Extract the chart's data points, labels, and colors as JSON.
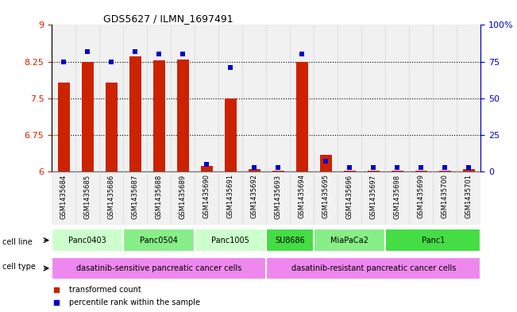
{
  "title": "GDS5627 / ILMN_1697491",
  "samples": [
    "GSM1435684",
    "GSM1435685",
    "GSM1435686",
    "GSM1435687",
    "GSM1435688",
    "GSM1435689",
    "GSM1435690",
    "GSM1435691",
    "GSM1435692",
    "GSM1435693",
    "GSM1435694",
    "GSM1435695",
    "GSM1435696",
    "GSM1435697",
    "GSM1435698",
    "GSM1435699",
    "GSM1435700",
    "GSM1435701"
  ],
  "transformed_count": [
    7.82,
    8.25,
    7.82,
    8.35,
    8.28,
    8.3,
    6.12,
    7.5,
    6.05,
    6.02,
    8.25,
    6.35,
    6.02,
    6.02,
    6.02,
    6.02,
    6.02,
    6.05
  ],
  "percentile_rank": [
    75,
    82,
    75,
    82,
    80,
    80,
    5,
    71,
    3,
    3,
    80,
    7,
    3,
    3,
    3,
    3,
    3,
    3
  ],
  "ylim_left": [
    6.0,
    9.0
  ],
  "ylim_right": [
    0,
    100
  ],
  "yticks_left": [
    6.0,
    6.75,
    7.5,
    8.25,
    9.0
  ],
  "yticks_left_labels": [
    "6",
    "6.75",
    "7.5",
    "8.25",
    "9"
  ],
  "yticks_right": [
    0,
    25,
    50,
    75,
    100
  ],
  "yticks_right_labels": [
    "0",
    "25",
    "50",
    "75",
    "100%"
  ],
  "left_axis_color": "#cc2200",
  "right_axis_color": "#0000cc",
  "bar_color_red": "#cc2200",
  "bar_color_blue": "#0000cc",
  "cell_lines": [
    {
      "name": "Panc0403",
      "start": 0,
      "end": 3,
      "color": "#ccffcc"
    },
    {
      "name": "Panc0504",
      "start": 3,
      "end": 6,
      "color": "#88ee88"
    },
    {
      "name": "Panc1005",
      "start": 6,
      "end": 9,
      "color": "#ccffcc"
    },
    {
      "name": "SU8686",
      "start": 9,
      "end": 11,
      "color": "#44dd44"
    },
    {
      "name": "MiaPaCa2",
      "start": 11,
      "end": 14,
      "color": "#88ee88"
    },
    {
      "name": "Panc1",
      "start": 14,
      "end": 18,
      "color": "#44dd44"
    }
  ],
  "cell_types": [
    {
      "name": "dasatinib-sensitive pancreatic cancer cells",
      "start": 0,
      "end": 9,
      "color": "#ee88ee"
    },
    {
      "name": "dasatinib-resistant pancreatic cancer cells",
      "start": 9,
      "end": 18,
      "color": "#ee88ee"
    }
  ],
  "legend": [
    {
      "label": "transformed count",
      "color": "#cc2200"
    },
    {
      "label": "percentile rank within the sample",
      "color": "#0000cc"
    }
  ]
}
